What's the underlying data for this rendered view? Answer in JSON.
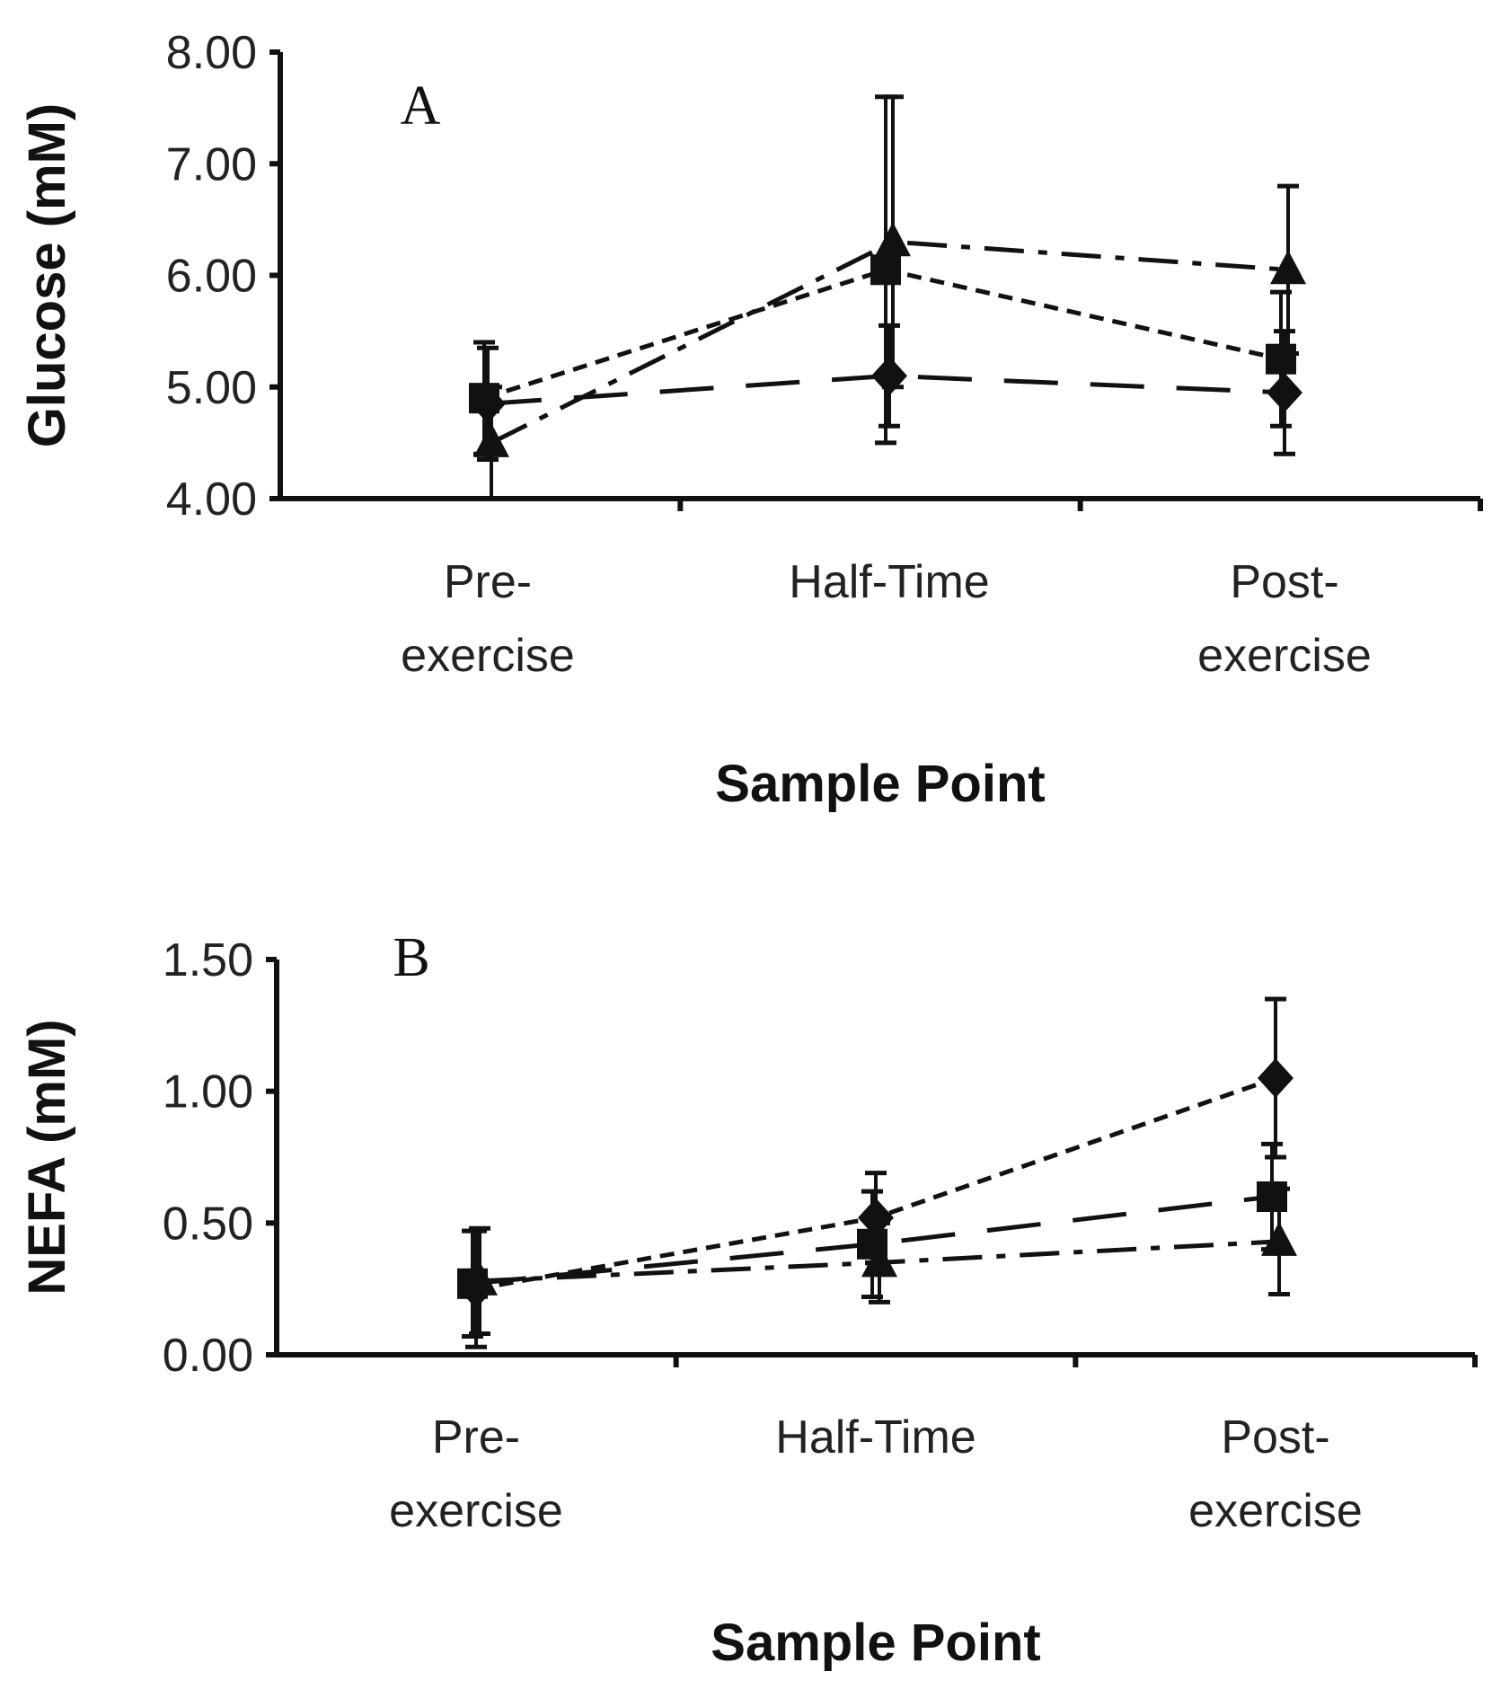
{
  "chart_data": [
    {
      "type": "line",
      "panel_label": "A",
      "ylabel": "Glucose (mM)",
      "xlabel": "Sample Point",
      "categories": [
        "Pre-exercise",
        "Half-Time",
        "Post-exercise"
      ],
      "category_lines": [
        [
          "Pre-",
          "exercise"
        ],
        [
          "Half-Time"
        ],
        [
          "Post-",
          "exercise"
        ]
      ],
      "ylim": [
        4.0,
        8.0
      ],
      "yticks": [
        4.0,
        5.0,
        6.0,
        7.0,
        8.0
      ],
      "ytick_labels": [
        "4.00",
        "5.00",
        "6.00",
        "7.00",
        "8.00"
      ],
      "legend": "none",
      "grid": false,
      "series": [
        {
          "marker": "diamond",
          "line_style": "long-dash",
          "values": [
            4.85,
            5.1,
            4.95
          ],
          "error": [
            0.5,
            0.45,
            0.55
          ]
        },
        {
          "marker": "square",
          "line_style": "short-dash",
          "values": [
            4.9,
            6.05,
            5.25
          ],
          "error": [
            0.5,
            1.55,
            0.6
          ]
        },
        {
          "marker": "triangle",
          "line_style": "dash-dot",
          "values": [
            4.5,
            6.3,
            6.05
          ],
          "error": [
            0.5,
            1.3,
            0.75
          ]
        }
      ]
    },
    {
      "type": "line",
      "panel_label": "B",
      "ylabel": "NEFA (mM)",
      "xlabel": "Sample Point",
      "categories": [
        "Pre-exercise",
        "Half-Time",
        "Post-exercise"
      ],
      "category_lines": [
        [
          "Pre-",
          "exercise"
        ],
        [
          "Half-Time"
        ],
        [
          "Post-",
          "exercise"
        ]
      ],
      "ylim": [
        0.0,
        1.5
      ],
      "yticks": [
        0.0,
        0.5,
        1.0,
        1.5
      ],
      "ytick_labels": [
        "0.00",
        "0.50",
        "1.00",
        "1.50"
      ],
      "legend": "none",
      "grid": false,
      "series": [
        {
          "marker": "diamond",
          "line_style": "short-dash",
          "values": [
            0.25,
            0.52,
            1.05
          ],
          "error": [
            0.22,
            0.17,
            0.3
          ]
        },
        {
          "marker": "square",
          "line_style": "long-dash",
          "values": [
            0.27,
            0.42,
            0.6
          ],
          "error": [
            0.2,
            0.2,
            0.2
          ]
        },
        {
          "marker": "triangle",
          "line_style": "dash-dot",
          "values": [
            0.28,
            0.35,
            0.43
          ],
          "error": [
            0.2,
            0.15,
            0.2
          ]
        }
      ]
    }
  ]
}
